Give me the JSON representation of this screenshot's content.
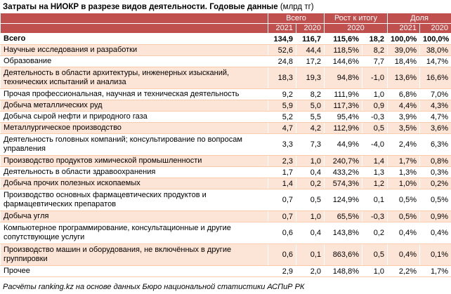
{
  "title": {
    "bold": "Затраты на НИОКР в разрезе видов деятельности. Годовые данные",
    "unit": "(млрд тг)"
  },
  "header": {
    "group_total": "Всего",
    "group_growth": "Рост к итогу",
    "group_share": "Доля",
    "y2021": "2021",
    "y2020": "2020",
    "growth_year": "2020"
  },
  "rows": [
    {
      "name": "Всего",
      "v2021": "134,9",
      "v2020": "116,7",
      "growth_pct": "115,6%",
      "growth_abs": "18,2",
      "share2021": "100,0%",
      "share2020": "100,0%"
    },
    {
      "name": "Научные исследования и разработки",
      "v2021": "52,6",
      "v2020": "44,4",
      "growth_pct": "118,5%",
      "growth_abs": "8,2",
      "share2021": "39,0%",
      "share2020": "38,0%"
    },
    {
      "name": "Образование",
      "v2021": "24,8",
      "v2020": "17,2",
      "growth_pct": "144,6%",
      "growth_abs": "7,7",
      "share2021": "18,4%",
      "share2020": "14,7%"
    },
    {
      "name": "Деятельность в области архитектуры, инженерных изысканий, технических испытаний и анализа",
      "v2021": "18,3",
      "v2020": "19,3",
      "growth_pct": "94,8%",
      "growth_abs": "-1,0",
      "share2021": "13,6%",
      "share2020": "16,6%"
    },
    {
      "name": "Прочая профессиональная, научная и техническая деятельность",
      "v2021": "9,2",
      "v2020": "8,2",
      "growth_pct": "111,9%",
      "growth_abs": "1,0",
      "share2021": "6,8%",
      "share2020": "7,0%"
    },
    {
      "name": "Добыча металлических руд",
      "v2021": "5,9",
      "v2020": "5,0",
      "growth_pct": "117,3%",
      "growth_abs": "0,9",
      "share2021": "4,4%",
      "share2020": "4,3%"
    },
    {
      "name": "Добыча сырой нефти и природного газа",
      "v2021": "5,2",
      "v2020": "5,5",
      "growth_pct": "95,4%",
      "growth_abs": "-0,3",
      "share2021": "3,9%",
      "share2020": "4,7%"
    },
    {
      "name": "Металлургическое производство",
      "v2021": "4,7",
      "v2020": "4,2",
      "growth_pct": "112,9%",
      "growth_abs": "0,5",
      "share2021": "3,5%",
      "share2020": "3,6%"
    },
    {
      "name": "Деятельность головных компаний; консультирование по вопросам управления",
      "v2021": "3,3",
      "v2020": "7,3",
      "growth_pct": "44,9%",
      "growth_abs": "-4,0",
      "share2021": "2,4%",
      "share2020": "6,3%"
    },
    {
      "name": "Производство продуктов химической промышленности",
      "v2021": "2,3",
      "v2020": "1,0",
      "growth_pct": "240,7%",
      "growth_abs": "1,4",
      "share2021": "1,7%",
      "share2020": "0,8%"
    },
    {
      "name": "Деятельность в области здравоохранения",
      "v2021": "1,7",
      "v2020": "0,4",
      "growth_pct": "433,2%",
      "growth_abs": "1,3",
      "share2021": "1,3%",
      "share2020": "0,3%"
    },
    {
      "name": "Добыча прочих полезных ископаемых",
      "v2021": "1,4",
      "v2020": "0,2",
      "growth_pct": "574,3%",
      "growth_abs": "1,2",
      "share2021": "1,0%",
      "share2020": "0,2%"
    },
    {
      "name": "Производство основных фармацевтических продуктов и фармацевтических препаратов",
      "v2021": "0,7",
      "v2020": "0,5",
      "growth_pct": "124,9%",
      "growth_abs": "0,1",
      "share2021": "0,5%",
      "share2020": "0,5%"
    },
    {
      "name": "Добыча угля",
      "v2021": "0,7",
      "v2020": "1,0",
      "growth_pct": "65,5%",
      "growth_abs": "-0,3",
      "share2021": "0,5%",
      "share2020": "0,9%"
    },
    {
      "name": "Компьютерное программирование, консультационные и другие сопутствующие услуги",
      "v2021": "0,6",
      "v2020": "0,4",
      "growth_pct": "143,8%",
      "growth_abs": "0,2",
      "share2021": "0,4%",
      "share2020": "0,4%"
    },
    {
      "name": "Производство машин и оборудования, не включённых в другие группировки",
      "v2021": "0,6",
      "v2020": "0,1",
      "growth_pct": "863,6%",
      "growth_abs": "0,5",
      "share2021": "0,4%",
      "share2020": "0,1%"
    },
    {
      "name": "Прочее",
      "v2021": "2,9",
      "v2020": "2,0",
      "growth_pct": "148,8%",
      "growth_abs": "1,0",
      "share2021": "2,2%",
      "share2020": "1,7%"
    }
  ],
  "source": "Расчёты ranking.kz на основе данных Бюро национальной статистики АСПиР РК"
}
